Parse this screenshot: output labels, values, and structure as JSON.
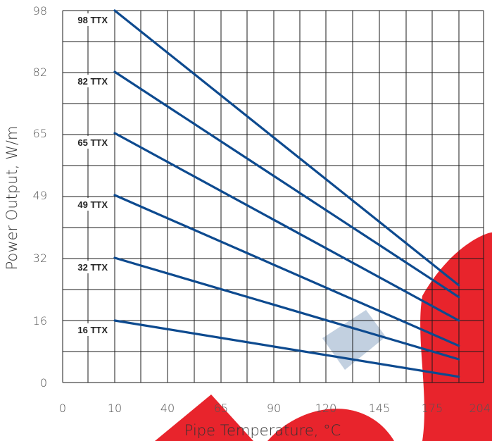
{
  "chart_data": {
    "type": "line",
    "title": "",
    "xlabel": "Pipe Temperature, °C",
    "ylabel": "Power Output, W/m",
    "x_ticks": [
      "0",
      "10",
      "40",
      "65",
      "90",
      "120",
      "145",
      "175",
      "204"
    ],
    "y_ticks": [
      "0",
      "16",
      "32",
      "49",
      "65",
      "82",
      "98"
    ],
    "grid": true,
    "series": [
      {
        "name": "98 TTX",
        "x": [
          "10",
          "190"
        ],
        "y": [
          98,
          25
        ]
      },
      {
        "name": "82 TTX",
        "x": [
          "10",
          "190"
        ],
        "y": [
          82,
          22
        ]
      },
      {
        "name": "65 TTX",
        "x": [
          "10",
          "190"
        ],
        "y": [
          65,
          16
        ]
      },
      {
        "name": "49 TTX",
        "x": [
          "10",
          "190"
        ],
        "y": [
          49,
          9.5
        ]
      },
      {
        "name": "32 TTX",
        "x": [
          "10",
          "190"
        ],
        "y": [
          32,
          6
        ]
      },
      {
        "name": "16 TTX",
        "x": [
          "10",
          "190"
        ],
        "y": [
          16,
          1.5
        ]
      }
    ]
  },
  "colors": {
    "series_line": "#0d4a8f",
    "grid": "#1a1a1a",
    "watermark_red": "#e8242c",
    "watermark_blue": "#b7c8da"
  }
}
